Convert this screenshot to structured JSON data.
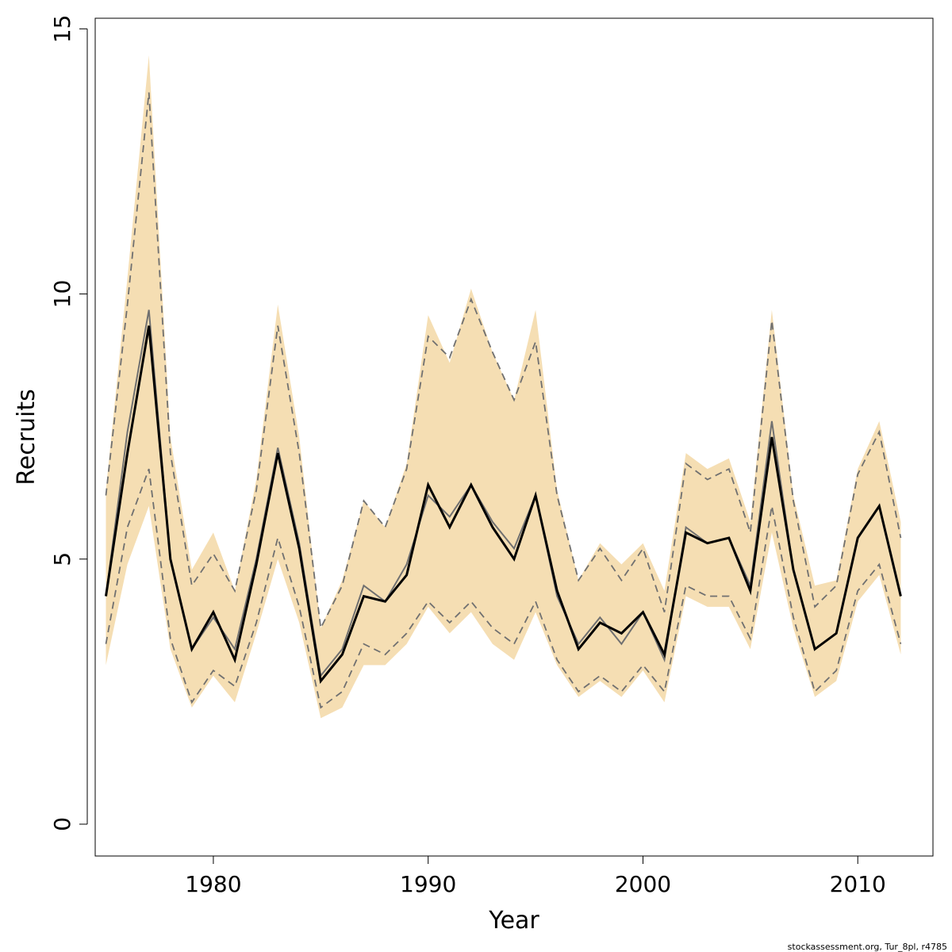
{
  "chart_data": {
    "type": "area",
    "xlabel": "Year",
    "ylabel": "Recruits",
    "xlim": [
      1974.5,
      2013.5
    ],
    "ylim": [
      -0.6,
      15.2
    ],
    "x_ticks": [
      1980,
      1990,
      2000,
      2010
    ],
    "y_ticks": [
      0,
      5,
      10,
      15
    ],
    "grid": false,
    "legend": "none",
    "credit": "stockassessment.org, Tur_8pl, r4785",
    "colors": {
      "band": "#F5DEB3",
      "main_line": "#000000",
      "alt_line": "#707070",
      "ci_dashed": "#707070"
    },
    "x": [
      1975,
      1976,
      1977,
      1978,
      1979,
      1980,
      1981,
      1982,
      1983,
      1984,
      1985,
      1986,
      1987,
      1988,
      1989,
      1990,
      1991,
      1992,
      1993,
      1994,
      1995,
      1996,
      1997,
      1998,
      1999,
      2000,
      2001,
      2002,
      2003,
      2004,
      2005,
      2006,
      2007,
      2008,
      2009,
      2010,
      2011,
      2012
    ],
    "series": [
      {
        "role": "band_upper",
        "values": [
          6.3,
          10.3,
          14.5,
          7.3,
          4.8,
          5.5,
          4.4,
          6.5,
          9.8,
          7.3,
          3.7,
          4.6,
          6.1,
          5.6,
          6.8,
          9.6,
          8.7,
          10.1,
          8.9,
          8.0,
          9.7,
          6.3,
          4.6,
          5.3,
          4.9,
          5.3,
          4.4,
          7.0,
          6.7,
          6.9,
          5.7,
          9.7,
          6.2,
          4.5,
          4.6,
          6.7,
          7.6,
          5.7
        ]
      },
      {
        "role": "band_lower",
        "values": [
          3.0,
          4.9,
          6.0,
          3.3,
          2.2,
          2.8,
          2.3,
          3.6,
          5.0,
          3.8,
          2.0,
          2.2,
          3.0,
          3.0,
          3.4,
          4.1,
          3.6,
          4.0,
          3.4,
          3.1,
          4.0,
          3.0,
          2.4,
          2.7,
          2.4,
          2.9,
          2.3,
          4.3,
          4.1,
          4.1,
          3.3,
          5.5,
          3.7,
          2.4,
          2.7,
          4.2,
          4.7,
          3.2
        ]
      },
      {
        "role": "dashed_upper",
        "values": [
          6.2,
          9.8,
          13.8,
          7.0,
          4.5,
          5.1,
          4.4,
          6.3,
          9.4,
          7.0,
          3.7,
          4.5,
          6.1,
          5.6,
          6.7,
          9.2,
          8.8,
          9.9,
          8.9,
          8.0,
          9.1,
          6.2,
          4.6,
          5.2,
          4.6,
          5.2,
          4.0,
          6.8,
          6.5,
          6.7,
          5.5,
          9.5,
          6.1,
          4.1,
          4.5,
          6.6,
          7.4,
          5.4
        ]
      },
      {
        "role": "dashed_lower",
        "values": [
          3.4,
          5.6,
          6.7,
          3.5,
          2.3,
          2.9,
          2.6,
          3.8,
          5.4,
          4.1,
          2.2,
          2.5,
          3.4,
          3.2,
          3.6,
          4.2,
          3.8,
          4.2,
          3.7,
          3.4,
          4.2,
          3.1,
          2.5,
          2.8,
          2.5,
          3.0,
          2.5,
          4.5,
          4.3,
          4.3,
          3.5,
          6.0,
          3.9,
          2.5,
          2.9,
          4.4,
          4.9,
          3.4
        ]
      },
      {
        "role": "alt_line",
        "values": [
          4.3,
          7.4,
          9.7,
          5.0,
          3.3,
          3.9,
          3.3,
          5.0,
          7.1,
          5.3,
          2.8,
          3.3,
          4.5,
          4.2,
          4.9,
          6.2,
          5.8,
          6.4,
          5.7,
          5.2,
          6.2,
          4.3,
          3.4,
          3.9,
          3.4,
          4.0,
          3.1,
          5.6,
          5.3,
          5.4,
          4.5,
          7.6,
          4.8,
          3.3,
          3.6,
          5.4,
          6.0,
          4.3
        ]
      },
      {
        "role": "main_line",
        "values": [
          4.3,
          7.0,
          9.4,
          5.0,
          3.3,
          4.0,
          3.1,
          4.9,
          7.0,
          5.2,
          2.7,
          3.2,
          4.3,
          4.2,
          4.7,
          6.4,
          5.6,
          6.4,
          5.6,
          5.0,
          6.2,
          4.4,
          3.3,
          3.8,
          3.6,
          4.0,
          3.2,
          5.5,
          5.3,
          5.4,
          4.4,
          7.3,
          4.8,
          3.3,
          3.6,
          5.4,
          6.0,
          4.3
        ]
      }
    ]
  }
}
